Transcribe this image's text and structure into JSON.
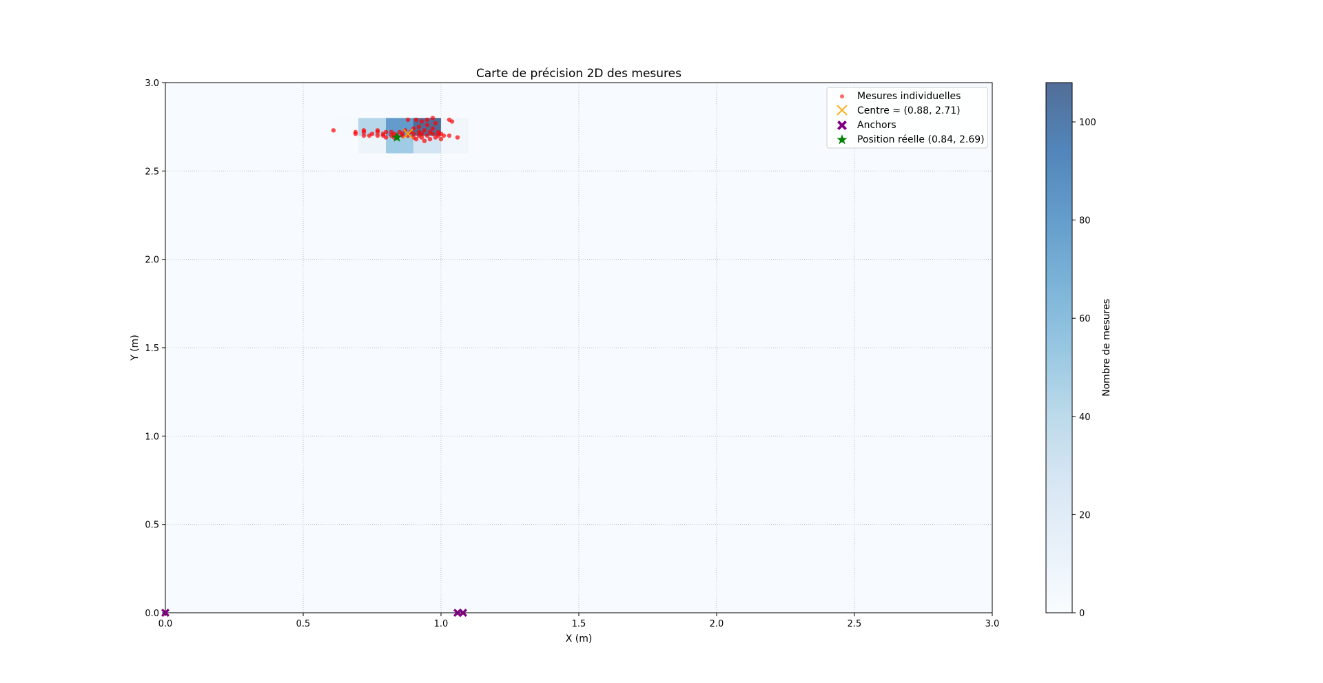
{
  "chart_data": {
    "type": "scatter",
    "title": "Carte de précision 2D des mesures",
    "xlabel": "X (m)",
    "ylabel": "Y (m)",
    "xlim": [
      0,
      3
    ],
    "ylim": [
      0,
      3
    ],
    "xticks": [
      "0.0",
      "0.5",
      "1.0",
      "1.5",
      "2.0",
      "2.5",
      "3.0"
    ],
    "yticks": [
      "0.0",
      "0.5",
      "1.0",
      "1.5",
      "2.0",
      "2.5",
      "3.0"
    ],
    "grid": true,
    "legend_position": "top-right",
    "heatmap": {
      "colormap": "Blues",
      "vmax": 108,
      "colorbar_label": "Nombre de mesures",
      "colorbar_ticks": [
        "0",
        "20",
        "40",
        "60",
        "80",
        "100"
      ],
      "cells": [
        {
          "x0": 0.6,
          "x1": 0.7,
          "y0": 2.7,
          "y1": 2.8,
          "count": 2
        },
        {
          "x0": 0.7,
          "x1": 0.8,
          "y0": 2.6,
          "y1": 2.7,
          "count": 8
        },
        {
          "x0": 0.7,
          "x1": 0.8,
          "y0": 2.7,
          "y1": 2.8,
          "count": 42
        },
        {
          "x0": 0.8,
          "x1": 0.9,
          "y0": 2.6,
          "y1": 2.7,
          "count": 50
        },
        {
          "x0": 0.8,
          "x1": 0.9,
          "y0": 2.7,
          "y1": 2.8,
          "count": 80
        },
        {
          "x0": 0.9,
          "x1": 1.0,
          "y0": 2.6,
          "y1": 2.7,
          "count": 28
        },
        {
          "x0": 0.9,
          "x1": 1.0,
          "y0": 2.7,
          "y1": 2.8,
          "count": 108
        },
        {
          "x0": 1.0,
          "x1": 1.1,
          "y0": 2.6,
          "y1": 2.7,
          "count": 6
        },
        {
          "x0": 1.0,
          "x1": 1.1,
          "y0": 2.7,
          "y1": 2.8,
          "count": 6
        }
      ]
    },
    "series": [
      {
        "name": "Mesures individuelles",
        "marker": "dot",
        "color": "#ff0000",
        "points": [
          [
            0.61,
            2.73
          ],
          [
            0.69,
            2.71
          ],
          [
            0.69,
            2.72
          ],
          [
            0.72,
            2.7
          ],
          [
            0.72,
            2.72
          ],
          [
            0.72,
            2.73
          ],
          [
            0.74,
            2.7
          ],
          [
            0.75,
            2.71
          ],
          [
            0.77,
            2.7
          ],
          [
            0.77,
            2.72
          ],
          [
            0.77,
            2.73
          ],
          [
            0.79,
            2.7
          ],
          [
            0.79,
            2.71
          ],
          [
            0.8,
            2.69
          ],
          [
            0.8,
            2.72
          ],
          [
            0.82,
            2.7
          ],
          [
            0.82,
            2.72
          ],
          [
            0.83,
            2.69
          ],
          [
            0.83,
            2.71
          ],
          [
            0.84,
            2.7
          ],
          [
            0.85,
            2.72
          ],
          [
            0.86,
            2.7
          ],
          [
            0.86,
            2.71
          ],
          [
            0.87,
            2.73
          ],
          [
            0.88,
            2.79
          ],
          [
            0.88,
            2.7
          ],
          [
            0.89,
            2.72
          ],
          [
            0.9,
            2.69
          ],
          [
            0.9,
            2.71
          ],
          [
            0.9,
            2.74
          ],
          [
            0.91,
            2.79
          ],
          [
            0.91,
            2.68
          ],
          [
            0.92,
            2.7
          ],
          [
            0.92,
            2.72
          ],
          [
            0.92,
            2.75
          ],
          [
            0.93,
            2.78
          ],
          [
            0.93,
            2.71
          ],
          [
            0.93,
            2.69
          ],
          [
            0.94,
            2.73
          ],
          [
            0.94,
            2.67
          ],
          [
            0.95,
            2.79
          ],
          [
            0.95,
            2.76
          ],
          [
            0.95,
            2.7
          ],
          [
            0.96,
            2.72
          ],
          [
            0.96,
            2.68
          ],
          [
            0.97,
            2.8
          ],
          [
            0.97,
            2.74
          ],
          [
            0.97,
            2.71
          ],
          [
            0.98,
            2.69
          ],
          [
            0.98,
            2.77
          ],
          [
            0.99,
            2.72
          ],
          [
            0.99,
            2.7
          ],
          [
            1.0,
            2.68
          ],
          [
            1.0,
            2.71
          ],
          [
            1.01,
            2.7
          ],
          [
            1.03,
            2.79
          ],
          [
            1.03,
            2.7
          ],
          [
            1.04,
            2.78
          ],
          [
            1.06,
            2.69
          ]
        ]
      },
      {
        "name": "Centre ≈ (0.88, 2.71)",
        "marker": "x",
        "color": "#ffa500",
        "points": [
          [
            0.88,
            2.71
          ]
        ]
      },
      {
        "name": "Anchors",
        "marker": "X",
        "color": "#800080",
        "points": [
          [
            0.0,
            0.0
          ],
          [
            1.06,
            0.0
          ],
          [
            1.08,
            0.0
          ]
        ]
      },
      {
        "name": "Position réelle (0.84, 2.69)",
        "marker": "star",
        "color": "#008000",
        "points": [
          [
            0.84,
            2.69
          ]
        ]
      }
    ]
  }
}
